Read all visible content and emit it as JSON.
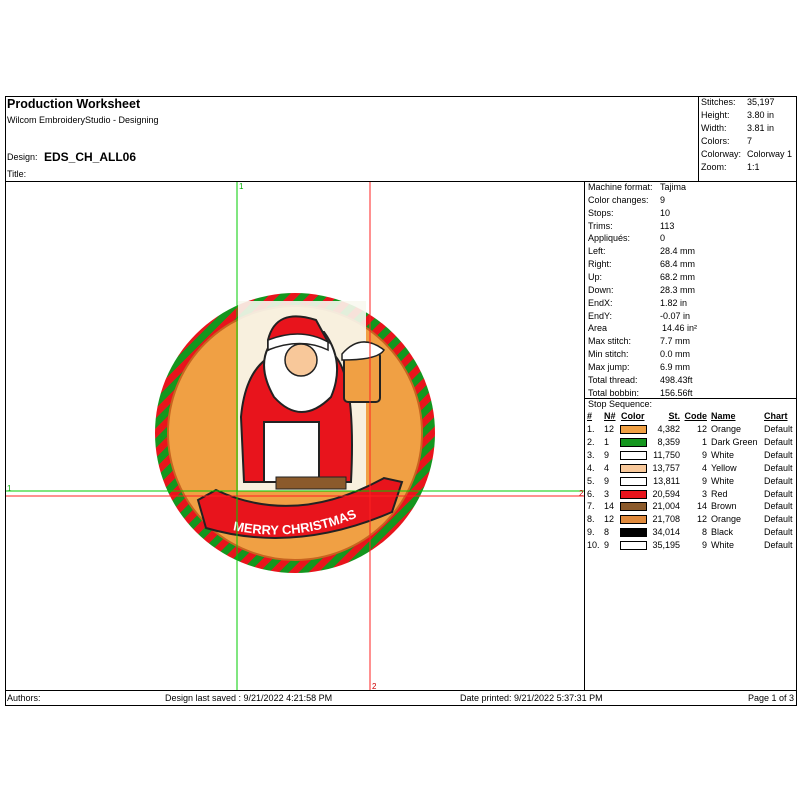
{
  "header": {
    "title": "Production Worksheet",
    "software": "Wilcom EmbroideryStudio - Designing",
    "design_label": "Design:",
    "design_name": "EDS_CH_ALL06",
    "title_label": "Title:"
  },
  "summary": [
    [
      "Stitches:",
      "35,197"
    ],
    [
      "Height:",
      "3.80 in"
    ],
    [
      "Width:",
      "3.81 in"
    ],
    [
      "Colors:",
      "7"
    ],
    [
      "Colorway:",
      "Colorway 1"
    ],
    [
      "Zoom:",
      "1:1"
    ]
  ],
  "machine": [
    [
      "Machine format:",
      "Tajima"
    ],
    [
      "Color changes:",
      "9"
    ],
    [
      "Stops:",
      "10"
    ],
    [
      "Trims:",
      "113"
    ],
    [
      "Appliqués:",
      "0"
    ],
    [
      "Left:",
      "28.4 mm"
    ],
    [
      "Right:",
      "68.4 mm"
    ],
    [
      "Up:",
      "68.2 mm"
    ],
    [
      "Down:",
      "28.3 mm"
    ],
    [
      "EndX:",
      "1.82 in"
    ],
    [
      "EndY:",
      "-0.07 in"
    ],
    [
      "Area",
      "14.46 in²"
    ],
    [
      "Max stitch:",
      "7.7 mm"
    ],
    [
      "Min stitch:",
      "0.0 mm"
    ],
    [
      "Max jump:",
      "6.9 mm"
    ],
    [
      "Total thread:",
      "498.43ft"
    ],
    [
      "Total bobbin:",
      "156.56ft"
    ]
  ],
  "stop_sequence": {
    "title": "Stop Sequence:",
    "columns": [
      "#",
      "N#",
      "Color",
      "St.",
      "Code",
      "Name",
      "Chart"
    ],
    "rows": [
      {
        "index": "1.",
        "needle": "12",
        "color": "#f0a044",
        "stitches": "4,382",
        "code": "12",
        "name": "Orange",
        "chart": "Default"
      },
      {
        "index": "2.",
        "needle": "1",
        "color": "#14961e",
        "stitches": "8,359",
        "code": "1",
        "name": "Dark Green",
        "chart": "Default"
      },
      {
        "index": "3.",
        "needle": "9",
        "color": "#ffffff",
        "stitches": "11,750",
        "code": "9",
        "name": "White",
        "chart": "Default"
      },
      {
        "index": "4.",
        "needle": "4",
        "color": "#f8c89a",
        "stitches": "13,757",
        "code": "4",
        "name": "Yellow",
        "chart": "Default"
      },
      {
        "index": "5.",
        "needle": "9",
        "color": "#ffffff",
        "stitches": "13,811",
        "code": "9",
        "name": "White",
        "chart": "Default"
      },
      {
        "index": "6.",
        "needle": "3",
        "color": "#e8141c",
        "stitches": "20,594",
        "code": "3",
        "name": "Red",
        "chart": "Default"
      },
      {
        "index": "7.",
        "needle": "14",
        "color": "#8b5a2b",
        "stitches": "21,004",
        "code": "14",
        "name": "Brown",
        "chart": "Default"
      },
      {
        "index": "8.",
        "needle": "12",
        "color": "#e08a3c",
        "stitches": "21,708",
        "code": "12",
        "name": "Orange",
        "chart": "Default"
      },
      {
        "index": "9.",
        "needle": "8",
        "color": "#000000",
        "stitches": "34,014",
        "code": "8",
        "name": "Black",
        "chart": "Default"
      },
      {
        "index": "10.",
        "needle": "9",
        "color": "#ffffff",
        "stitches": "35,195",
        "code": "9",
        "name": "White",
        "chart": "Default"
      }
    ]
  },
  "guides": {
    "green_vertical": "1",
    "green_horizontal": "1",
    "red_vertical": "2",
    "red_horizontal": "2"
  },
  "design": {
    "banner": "MERRY CHRISTMAS"
  },
  "footer": {
    "authors": "Authors:",
    "saved": "Design last saved : 9/21/2022 4:21:58 PM",
    "printed": "Date printed: 9/21/2022 5:37:31 PM",
    "page": "Page 1 of 3"
  }
}
